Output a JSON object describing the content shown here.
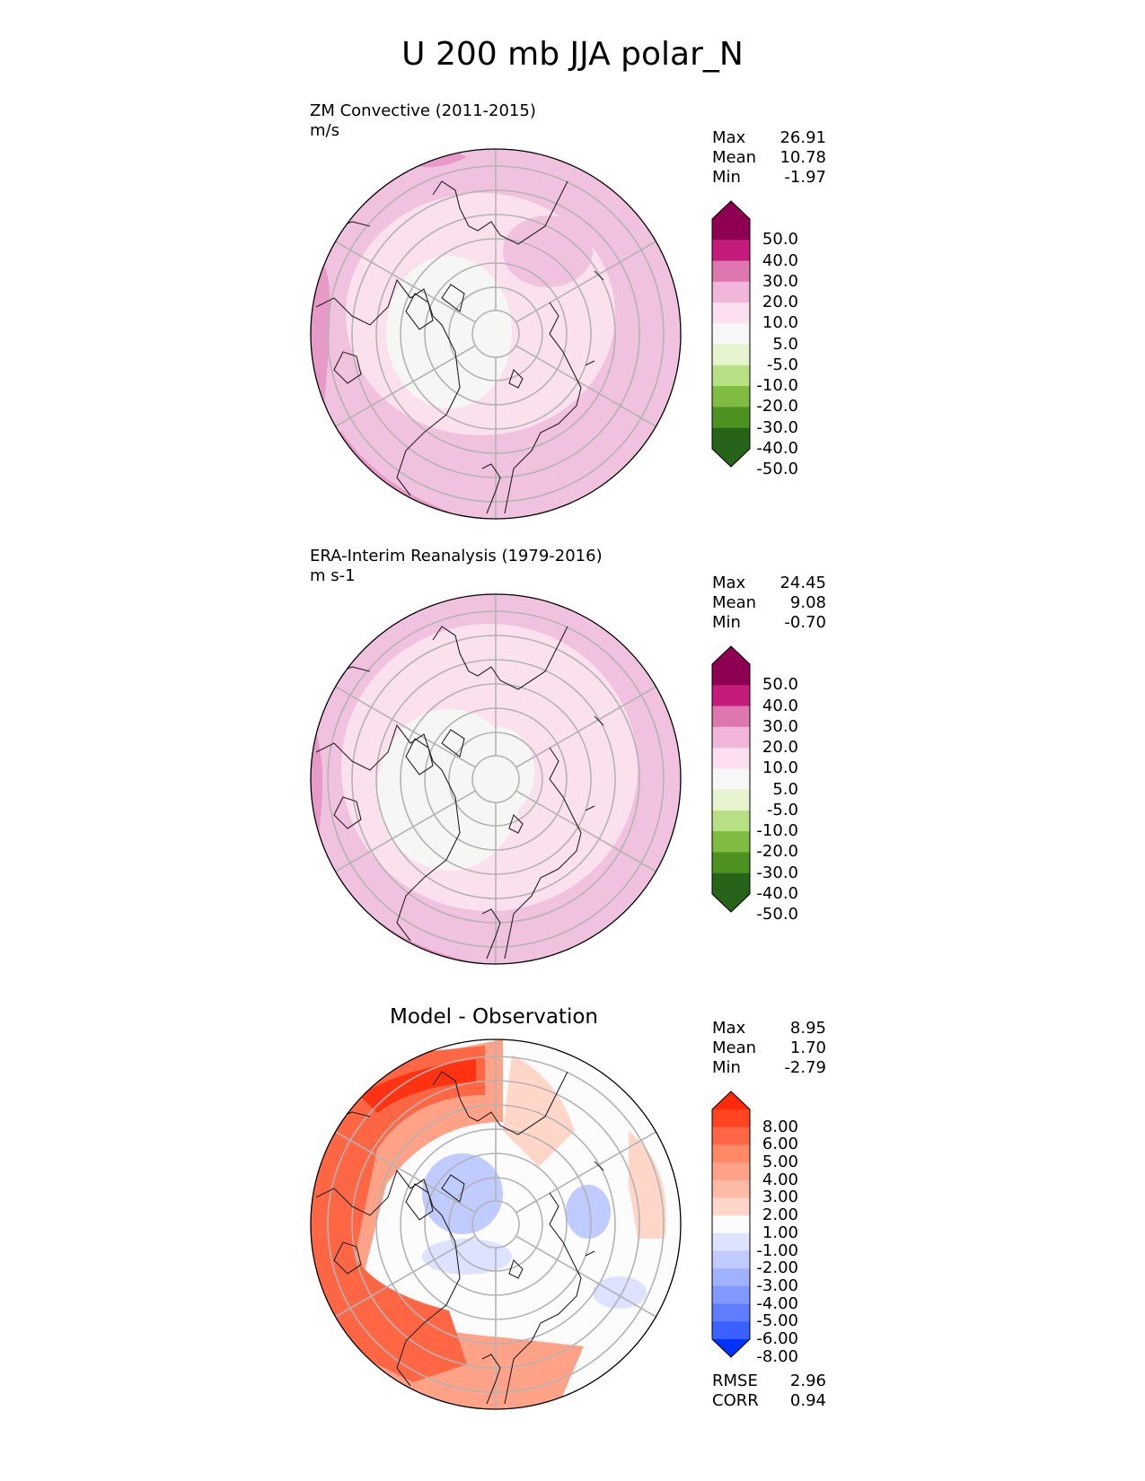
{
  "title": "U 200 mb JJA polar_N",
  "panels": [
    {
      "id": "test",
      "label": "ZM Convective (2011-2015)",
      "units": "m/s",
      "stats": [
        {
          "name": "Max",
          "value": "26.91"
        },
        {
          "name": "Mean",
          "value": "10.78"
        },
        {
          "name": "Min",
          "value": "-1.97"
        }
      ],
      "colorbar": {
        "labels": [
          "50.0",
          "40.0",
          "30.0",
          "20.0",
          "10.0",
          "5.0",
          "-5.0",
          "-10.0",
          "-20.0",
          "-30.0",
          "-40.0",
          "-50.0"
        ],
        "colors": [
          "#8e0152",
          "#c51b7d",
          "#de77ae",
          "#f1b6da",
          "#fde0ef",
          "#f7f7f7",
          "#e6f5d0",
          "#b8e186",
          "#7fbc41",
          "#4d9221",
          "#276419"
        ],
        "extend_colors": {
          "top": "#8e0152",
          "bottom": "#276419"
        }
      }
    },
    {
      "id": "reference",
      "label": "ERA-Interim Reanalysis (1979-2016)",
      "units": "m s-1",
      "stats": [
        {
          "name": "Max",
          "value": "24.45"
        },
        {
          "name": "Mean",
          "value": "9.08"
        },
        {
          "name": "Min",
          "value": "-0.70"
        }
      ],
      "colorbar": {
        "labels": [
          "50.0",
          "40.0",
          "30.0",
          "20.0",
          "10.0",
          "5.0",
          "-5.0",
          "-10.0",
          "-20.0",
          "-30.0",
          "-40.0",
          "-50.0"
        ],
        "colors": [
          "#8e0152",
          "#c51b7d",
          "#de77ae",
          "#f1b6da",
          "#fde0ef",
          "#f7f7f7",
          "#e6f5d0",
          "#b8e186",
          "#7fbc41",
          "#4d9221",
          "#276419"
        ],
        "extend_colors": {
          "top": "#8e0152",
          "bottom": "#276419"
        }
      }
    },
    {
      "id": "difference",
      "title": "Model - Observation",
      "stats": [
        {
          "name": "Max",
          "value": "8.95"
        },
        {
          "name": "Mean",
          "value": "1.70"
        },
        {
          "name": "Min",
          "value": "-2.79"
        }
      ],
      "metrics": [
        {
          "name": "RMSE",
          "value": "2.96"
        },
        {
          "name": "CORR",
          "value": "0.94"
        }
      ],
      "colorbar": {
        "labels": [
          "8.00",
          "6.00",
          "5.00",
          "4.00",
          "3.00",
          "2.00",
          "1.00",
          "-1.00",
          "-2.00",
          "-3.00",
          "-4.00",
          "-5.00",
          "-6.00",
          "-8.00"
        ],
        "colors": [
          "#ff4422",
          "#ff6644",
          "#ff8866",
          "#ffa288",
          "#ffbba6",
          "#ffd6c8",
          "#fcfcfc",
          "#dce2ff",
          "#c0ccff",
          "#9fb1ff",
          "#8098ff",
          "#5f7eff",
          "#3a60ff"
        ],
        "extend_colors": {
          "top": "#ff2a0a",
          "bottom": "#0033ff"
        }
      }
    }
  ],
  "colors": {
    "land_outline": "#222222",
    "graticule": "#b3b3b3",
    "map_border": "#000000"
  }
}
